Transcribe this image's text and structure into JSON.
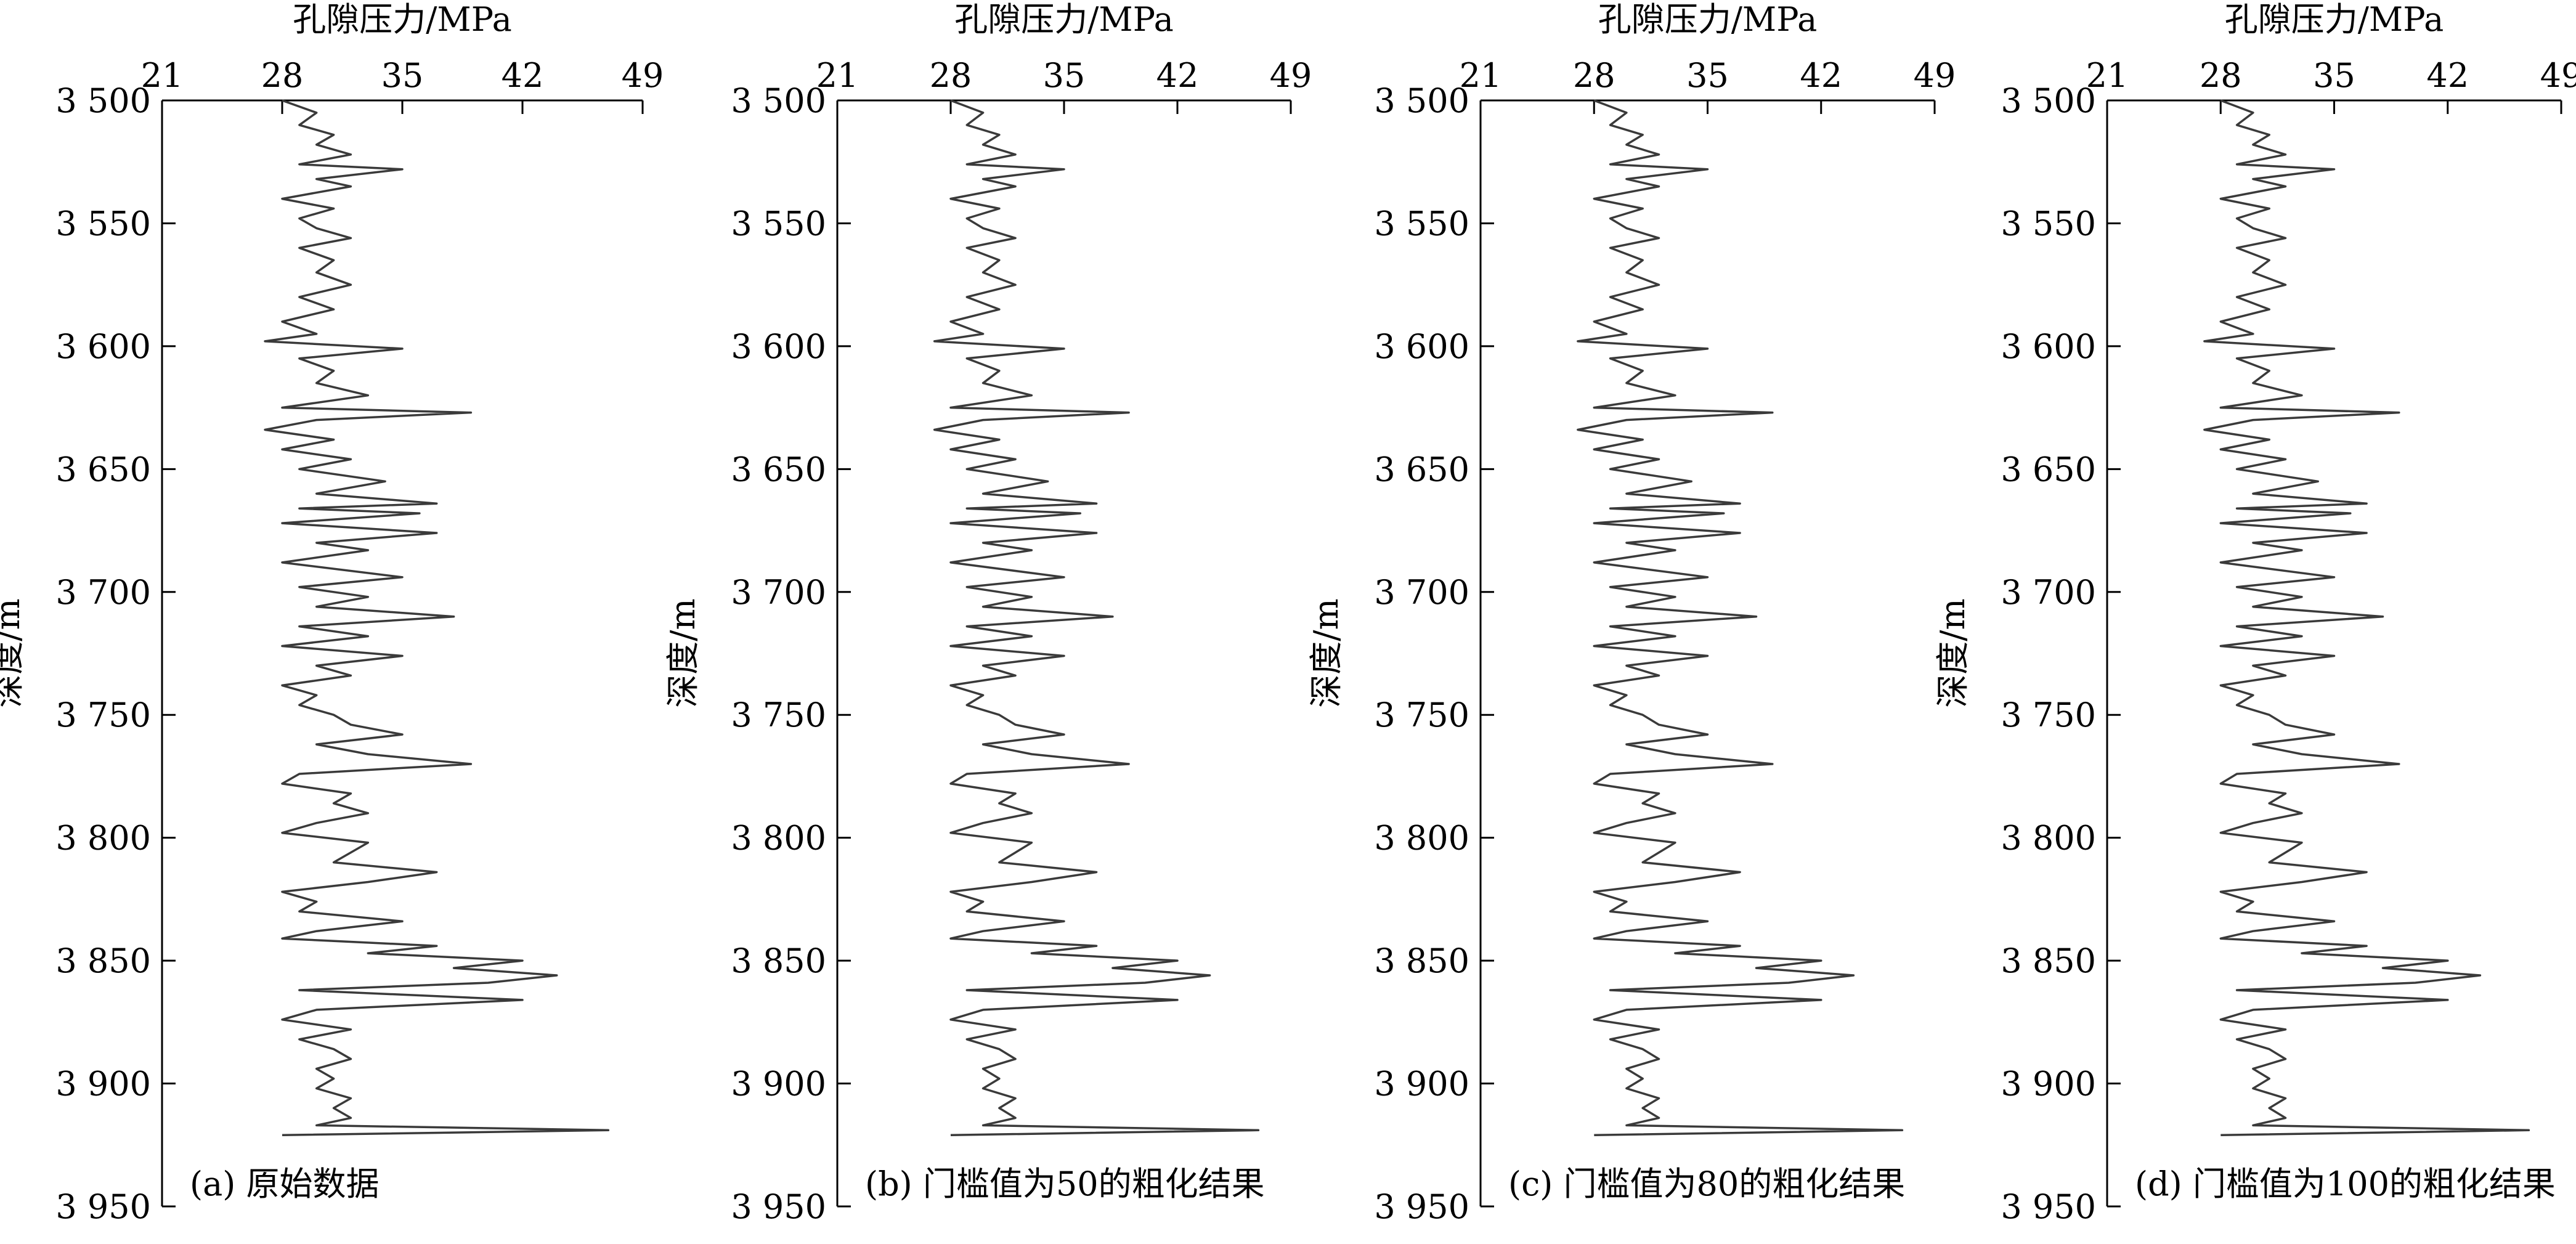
{
  "chart_data": [
    {
      "type": "line",
      "orientation": "depth-vertical",
      "title": "",
      "caption": "(a) 原始数据",
      "xlabel": "孔隙压力/MPa",
      "ylabel": "深度/m",
      "xlim": [
        21,
        49
      ],
      "ylim": [
        3500,
        3950
      ],
      "y_inverted": true,
      "grid": false,
      "x_ticks": [
        "21",
        "28",
        "35",
        "42",
        "49"
      ],
      "y_ticks": [
        "3 500",
        "3 550",
        "3 600",
        "3 650",
        "3 700",
        "3 750",
        "3 800",
        "3 850",
        "3 900",
        "3 950"
      ],
      "series": [
        {
          "color": "#3a3a3a",
          "depth": [
            3500,
            3505,
            3510,
            3514,
            3518,
            3522,
            3526,
            3528,
            3532,
            3535,
            3540,
            3544,
            3548,
            3552,
            3556,
            3560,
            3565,
            3570,
            3575,
            3580,
            3585,
            3590,
            3595,
            3598,
            3601,
            3605,
            3610,
            3615,
            3620,
            3625,
            3627,
            3630,
            3634,
            3638,
            3642,
            3646,
            3650,
            3655,
            3660,
            3664,
            3666,
            3668,
            3672,
            3676,
            3680,
            3683,
            3688,
            3694,
            3698,
            3702,
            3706,
            3710,
            3714,
            3718,
            3722,
            3726,
            3730,
            3734,
            3738,
            3742,
            3746,
            3750,
            3754,
            3758,
            3762,
            3766,
            3770,
            3774,
            3778,
            3782,
            3786,
            3790,
            3794,
            3798,
            3802,
            3806,
            3810,
            3814,
            3818,
            3822,
            3826,
            3830,
            3834,
            3838,
            3841,
            3844,
            3847,
            3850,
            3853,
            3856,
            3859,
            3862,
            3866,
            3870,
            3874,
            3878,
            3882,
            3886,
            3890,
            3894,
            3898,
            3902,
            3906,
            3910,
            3914,
            3917,
            3919,
            3921
          ],
          "pressure": [
            28,
            30,
            29,
            31,
            30,
            32,
            29,
            35,
            30,
            32,
            28,
            31,
            29,
            30,
            32,
            29,
            31,
            30,
            32,
            29,
            31,
            28,
            30,
            27,
            35,
            29,
            31,
            30,
            33,
            28,
            39,
            30,
            27,
            31,
            28,
            32,
            29,
            34,
            30,
            37,
            29,
            36,
            28,
            37,
            30,
            33,
            28,
            35,
            29,
            33,
            30,
            38,
            29,
            33,
            28,
            35,
            30,
            32,
            28,
            30,
            29,
            31,
            32,
            35,
            30,
            33,
            39,
            29,
            28,
            32,
            31,
            33,
            30,
            28,
            33,
            32,
            31,
            37,
            33,
            28,
            30,
            29,
            35,
            30,
            28,
            37,
            33,
            42,
            38,
            44,
            40,
            29,
            42,
            30,
            28,
            32,
            29,
            31,
            32,
            30,
            31,
            30,
            32,
            31,
            32,
            30,
            47,
            28
          ]
        }
      ]
    },
    {
      "type": "line",
      "orientation": "depth-vertical",
      "title": "",
      "caption": "(b) 门槛值为50的粗化结果",
      "xlabel": "孔隙压力/MPa",
      "ylabel": "深度/m",
      "xlim": [
        21,
        49
      ],
      "ylim": [
        3500,
        3950
      ],
      "y_inverted": true,
      "grid": false,
      "x_ticks": [
        "21",
        "28",
        "35",
        "42",
        "49"
      ],
      "y_ticks": [
        "3 500",
        "3 550",
        "3 600",
        "3 650",
        "3 700",
        "3 750",
        "3 800",
        "3 850",
        "3 900",
        "3 950"
      ],
      "series": [
        {
          "color": "#3a3a3a",
          "depth": [
            3500,
            3505,
            3510,
            3514,
            3518,
            3522,
            3526,
            3528,
            3532,
            3535,
            3540,
            3544,
            3548,
            3552,
            3556,
            3560,
            3565,
            3570,
            3575,
            3580,
            3585,
            3590,
            3595,
            3598,
            3601,
            3605,
            3610,
            3615,
            3620,
            3625,
            3627,
            3630,
            3634,
            3638,
            3642,
            3646,
            3650,
            3655,
            3660,
            3664,
            3666,
            3668,
            3672,
            3676,
            3680,
            3683,
            3688,
            3694,
            3698,
            3702,
            3706,
            3710,
            3714,
            3718,
            3722,
            3726,
            3730,
            3734,
            3738,
            3742,
            3746,
            3750,
            3754,
            3758,
            3762,
            3766,
            3770,
            3774,
            3778,
            3782,
            3786,
            3790,
            3794,
            3798,
            3802,
            3806,
            3810,
            3814,
            3818,
            3822,
            3826,
            3830,
            3834,
            3838,
            3841,
            3844,
            3847,
            3850,
            3853,
            3856,
            3859,
            3862,
            3866,
            3870,
            3874,
            3878,
            3882,
            3886,
            3890,
            3894,
            3898,
            3902,
            3906,
            3910,
            3914,
            3917,
            3919,
            3921
          ],
          "pressure": [
            28,
            30,
            29,
            31,
            30,
            32,
            29,
            35,
            30,
            32,
            28,
            31,
            29,
            30,
            32,
            29,
            31,
            30,
            32,
            29,
            31,
            28,
            30,
            27,
            35,
            29,
            31,
            30,
            33,
            28,
            39,
            30,
            27,
            31,
            28,
            32,
            29,
            34,
            30,
            37,
            29,
            36,
            28,
            37,
            30,
            33,
            28,
            35,
            29,
            33,
            30,
            38,
            29,
            33,
            28,
            35,
            30,
            32,
            28,
            30,
            29,
            31,
            32,
            35,
            30,
            33,
            39,
            29,
            28,
            32,
            31,
            33,
            30,
            28,
            33,
            32,
            31,
            37,
            33,
            28,
            30,
            29,
            35,
            30,
            28,
            37,
            33,
            42,
            38,
            44,
            40,
            29,
            42,
            30,
            28,
            32,
            29,
            31,
            32,
            30,
            31,
            30,
            32,
            31,
            32,
            30,
            47,
            28
          ]
        }
      ]
    },
    {
      "type": "line",
      "orientation": "depth-vertical",
      "title": "",
      "caption": "(c) 门槛值为80的粗化结果",
      "xlabel": "孔隙压力/MPa",
      "ylabel": "深度/m",
      "xlim": [
        21,
        49
      ],
      "ylim": [
        3500,
        3950
      ],
      "y_inverted": true,
      "grid": false,
      "x_ticks": [
        "21",
        "28",
        "35",
        "42",
        "49"
      ],
      "y_ticks": [
        "3 500",
        "3 550",
        "3 600",
        "3 650",
        "3 700",
        "3 750",
        "3 800",
        "3 850",
        "3 900",
        "3 950"
      ],
      "series": [
        {
          "color": "#3a3a3a",
          "depth": [
            3500,
            3505,
            3510,
            3514,
            3518,
            3522,
            3526,
            3528,
            3532,
            3535,
            3540,
            3544,
            3548,
            3552,
            3556,
            3560,
            3565,
            3570,
            3575,
            3580,
            3585,
            3590,
            3595,
            3598,
            3601,
            3605,
            3610,
            3615,
            3620,
            3625,
            3627,
            3630,
            3634,
            3638,
            3642,
            3646,
            3650,
            3655,
            3660,
            3664,
            3666,
            3668,
            3672,
            3676,
            3680,
            3683,
            3688,
            3694,
            3698,
            3702,
            3706,
            3710,
            3714,
            3718,
            3722,
            3726,
            3730,
            3734,
            3738,
            3742,
            3746,
            3750,
            3754,
            3758,
            3762,
            3766,
            3770,
            3774,
            3778,
            3782,
            3786,
            3790,
            3794,
            3798,
            3802,
            3806,
            3810,
            3814,
            3818,
            3822,
            3826,
            3830,
            3834,
            3838,
            3841,
            3844,
            3847,
            3850,
            3853,
            3856,
            3859,
            3862,
            3866,
            3870,
            3874,
            3878,
            3882,
            3886,
            3890,
            3894,
            3898,
            3902,
            3906,
            3910,
            3914,
            3917,
            3919,
            3921
          ],
          "pressure": [
            28,
            30,
            29,
            31,
            30,
            32,
            29,
            35,
            30,
            32,
            28,
            31,
            29,
            30,
            32,
            29,
            31,
            30,
            32,
            29,
            31,
            28,
            30,
            27,
            35,
            29,
            31,
            30,
            33,
            28,
            39,
            30,
            27,
            31,
            28,
            32,
            29,
            34,
            30,
            37,
            29,
            36,
            28,
            37,
            30,
            33,
            28,
            35,
            29,
            33,
            30,
            38,
            29,
            33,
            28,
            35,
            30,
            32,
            28,
            30,
            29,
            31,
            32,
            35,
            30,
            33,
            39,
            29,
            28,
            32,
            31,
            33,
            30,
            28,
            33,
            32,
            31,
            37,
            33,
            28,
            30,
            29,
            35,
            30,
            28,
            37,
            33,
            42,
            38,
            44,
            40,
            29,
            42,
            30,
            28,
            32,
            29,
            31,
            32,
            30,
            31,
            30,
            32,
            31,
            32,
            30,
            47,
            28
          ]
        }
      ]
    },
    {
      "type": "line",
      "orientation": "depth-vertical",
      "title": "",
      "caption": "(d) 门槛值为100的粗化结果",
      "xlabel": "孔隙压力/MPa",
      "ylabel": "深度/m",
      "xlim": [
        21,
        49
      ],
      "ylim": [
        3500,
        3950
      ],
      "y_inverted": true,
      "grid": false,
      "x_ticks": [
        "21",
        "28",
        "35",
        "42",
        "49"
      ],
      "y_ticks": [
        "3 500",
        "3 550",
        "3 600",
        "3 650",
        "3 700",
        "3 750",
        "3 800",
        "3 850",
        "3 900",
        "3 950"
      ],
      "series": [
        {
          "color": "#3a3a3a",
          "depth": [
            3500,
            3505,
            3510,
            3514,
            3518,
            3522,
            3526,
            3528,
            3532,
            3535,
            3540,
            3544,
            3548,
            3552,
            3556,
            3560,
            3565,
            3570,
            3575,
            3580,
            3585,
            3590,
            3595,
            3598,
            3601,
            3605,
            3610,
            3615,
            3620,
            3625,
            3627,
            3630,
            3634,
            3638,
            3642,
            3646,
            3650,
            3655,
            3660,
            3664,
            3666,
            3668,
            3672,
            3676,
            3680,
            3683,
            3688,
            3694,
            3698,
            3702,
            3706,
            3710,
            3714,
            3718,
            3722,
            3726,
            3730,
            3734,
            3738,
            3742,
            3746,
            3750,
            3754,
            3758,
            3762,
            3766,
            3770,
            3774,
            3778,
            3782,
            3786,
            3790,
            3794,
            3798,
            3802,
            3806,
            3810,
            3814,
            3818,
            3822,
            3826,
            3830,
            3834,
            3838,
            3841,
            3844,
            3847,
            3850,
            3853,
            3856,
            3859,
            3862,
            3866,
            3870,
            3874,
            3878,
            3882,
            3886,
            3890,
            3894,
            3898,
            3902,
            3906,
            3910,
            3914,
            3917,
            3919,
            3921
          ],
          "pressure": [
            28,
            30,
            29,
            31,
            30,
            32,
            29,
            35,
            30,
            32,
            28,
            31,
            29,
            30,
            32,
            29,
            31,
            30,
            32,
            29,
            31,
            28,
            30,
            27,
            35,
            29,
            31,
            30,
            33,
            28,
            39,
            30,
            27,
            31,
            28,
            32,
            29,
            34,
            30,
            37,
            29,
            36,
            28,
            37,
            30,
            33,
            28,
            35,
            29,
            33,
            30,
            38,
            29,
            33,
            28,
            35,
            30,
            32,
            28,
            30,
            29,
            31,
            32,
            35,
            30,
            33,
            39,
            29,
            28,
            32,
            31,
            33,
            30,
            28,
            33,
            32,
            31,
            37,
            33,
            28,
            30,
            29,
            35,
            30,
            28,
            37,
            33,
            42,
            38,
            44,
            40,
            29,
            42,
            30,
            28,
            32,
            29,
            31,
            32,
            30,
            31,
            30,
            32,
            31,
            32,
            30,
            47,
            28
          ]
        }
      ]
    }
  ]
}
